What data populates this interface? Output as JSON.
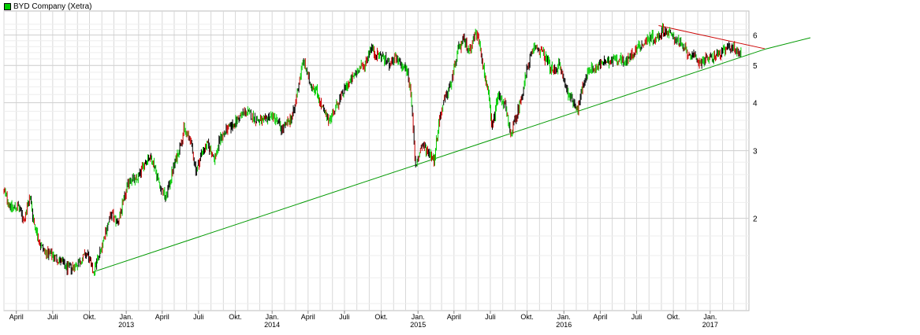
{
  "chart_data": {
    "type": "candlestick",
    "title": "",
    "xlabel": "",
    "ylabel": "",
    "y_scale": "log",
    "ylim": [
      1.15,
      6.8
    ],
    "xlim": [
      "2012-03-01",
      "2017-04-08"
    ],
    "y_ticks": [
      2,
      3,
      4,
      5,
      6
    ],
    "x_ticks": [
      {
        "date": "2012-04-01",
        "label": "April",
        "year": ""
      },
      {
        "date": "2012-07-01",
        "label": "Juli",
        "year": ""
      },
      {
        "date": "2012-10-01",
        "label": "Okt.",
        "year": ""
      },
      {
        "date": "2013-01-01",
        "label": "Jan.",
        "year": "2013"
      },
      {
        "date": "2013-04-01",
        "label": "April",
        "year": ""
      },
      {
        "date": "2013-07-01",
        "label": "Juli",
        "year": ""
      },
      {
        "date": "2013-10-01",
        "label": "Okt.",
        "year": ""
      },
      {
        "date": "2014-01-01",
        "label": "Jan.",
        "year": "2014"
      },
      {
        "date": "2014-04-01",
        "label": "April",
        "year": ""
      },
      {
        "date": "2014-07-01",
        "label": "Juli",
        "year": ""
      },
      {
        "date": "2014-10-01",
        "label": "Okt.",
        "year": ""
      },
      {
        "date": "2015-01-01",
        "label": "Jan.",
        "year": "2015"
      },
      {
        "date": "2015-04-01",
        "label": "April",
        "year": ""
      },
      {
        "date": "2015-07-01",
        "label": "Juli",
        "year": ""
      },
      {
        "date": "2015-10-01",
        "label": "Okt.",
        "year": ""
      },
      {
        "date": "2016-01-01",
        "label": "Jan.",
        "year": "2016"
      },
      {
        "date": "2016-04-01",
        "label": "April",
        "year": ""
      },
      {
        "date": "2016-07-01",
        "label": "Juli",
        "year": ""
      },
      {
        "date": "2016-10-01",
        "label": "Okt.",
        "year": ""
      },
      {
        "date": "2017-01-01",
        "label": "Jan.",
        "year": "2017"
      }
    ],
    "grid": true,
    "legend": {
      "position": "top-left",
      "label": "BYD Company (Xetra)",
      "color": "#00cc00"
    },
    "colors": {
      "up": "#00cc00",
      "down": "#cc0000",
      "neutral": "#000000",
      "support_line": "#009900",
      "resistance_line": "#cc0000",
      "grid": "#d8d8d8"
    },
    "series": [
      {
        "name": "BYD Company (Xetra)",
        "points": [
          [
            "2012-03-01",
            2.35
          ],
          [
            "2012-03-20",
            2.12
          ],
          [
            "2012-04-05",
            2.15
          ],
          [
            "2012-04-20",
            1.98
          ],
          [
            "2012-05-05",
            2.28
          ],
          [
            "2012-05-15",
            1.95
          ],
          [
            "2012-06-01",
            1.7
          ],
          [
            "2012-06-15",
            1.62
          ],
          [
            "2012-07-01",
            1.6
          ],
          [
            "2012-07-20",
            1.55
          ],
          [
            "2012-08-05",
            1.48
          ],
          [
            "2012-08-25",
            1.5
          ],
          [
            "2012-09-10",
            1.56
          ],
          [
            "2012-09-25",
            1.62
          ],
          [
            "2012-10-10",
            1.45
          ],
          [
            "2012-10-25",
            1.6
          ],
          [
            "2012-11-10",
            1.85
          ],
          [
            "2012-11-25",
            2.05
          ],
          [
            "2012-12-10",
            1.95
          ],
          [
            "2012-12-25",
            2.2
          ],
          [
            "2013-01-10",
            2.55
          ],
          [
            "2013-01-25",
            2.5
          ],
          [
            "2013-02-10",
            2.7
          ],
          [
            "2013-02-25",
            2.9
          ],
          [
            "2013-03-10",
            2.8
          ],
          [
            "2013-03-25",
            2.45
          ],
          [
            "2013-04-10",
            2.25
          ],
          [
            "2013-04-25",
            2.62
          ],
          [
            "2013-05-10",
            2.95
          ],
          [
            "2013-05-25",
            3.4
          ],
          [
            "2013-06-10",
            3.2
          ],
          [
            "2013-06-25",
            2.65
          ],
          [
            "2013-07-10",
            3.0
          ],
          [
            "2013-07-25",
            3.1
          ],
          [
            "2013-08-10",
            2.85
          ],
          [
            "2013-08-25",
            3.25
          ],
          [
            "2013-09-10",
            3.4
          ],
          [
            "2013-09-25",
            3.5
          ],
          [
            "2013-10-10",
            3.65
          ],
          [
            "2013-10-25",
            3.8
          ],
          [
            "2013-11-10",
            3.7
          ],
          [
            "2013-11-25",
            3.6
          ],
          [
            "2013-12-10",
            3.55
          ],
          [
            "2013-12-25",
            3.7
          ],
          [
            "2014-01-10",
            3.65
          ],
          [
            "2014-01-25",
            3.4
          ],
          [
            "2014-02-10",
            3.55
          ],
          [
            "2014-02-25",
            3.8
          ],
          [
            "2014-03-10",
            4.6
          ],
          [
            "2014-03-20",
            5.15
          ],
          [
            "2014-04-05",
            4.5
          ],
          [
            "2014-04-20",
            4.35
          ],
          [
            "2014-05-05",
            3.9
          ],
          [
            "2014-05-20",
            3.6
          ],
          [
            "2014-06-05",
            3.8
          ],
          [
            "2014-06-20",
            4.1
          ],
          [
            "2014-07-05",
            4.4
          ],
          [
            "2014-07-20",
            4.6
          ],
          [
            "2014-08-05",
            4.9
          ],
          [
            "2014-08-20",
            5.0
          ],
          [
            "2014-09-05",
            5.6
          ],
          [
            "2014-09-15",
            5.35
          ],
          [
            "2014-10-01",
            5.3
          ],
          [
            "2014-10-20",
            5.05
          ],
          [
            "2014-11-05",
            5.2
          ],
          [
            "2014-11-20",
            5.0
          ],
          [
            "2014-12-05",
            4.85
          ],
          [
            "2014-12-15",
            4.2
          ],
          [
            "2014-12-25",
            2.7
          ],
          [
            "2015-01-10",
            3.1
          ],
          [
            "2015-01-25",
            3.0
          ],
          [
            "2015-02-10",
            2.85
          ],
          [
            "2015-02-25",
            3.7
          ],
          [
            "2015-03-10",
            4.1
          ],
          [
            "2015-03-25",
            4.5
          ],
          [
            "2015-04-10",
            5.45
          ],
          [
            "2015-04-25",
            5.8
          ],
          [
            "2015-05-10",
            5.5
          ],
          [
            "2015-05-25",
            6.1
          ],
          [
            "2015-06-05",
            5.7
          ],
          [
            "2015-06-15",
            4.8
          ],
          [
            "2015-06-25",
            4.3
          ],
          [
            "2015-07-05",
            3.4
          ],
          [
            "2015-07-20",
            4.2
          ],
          [
            "2015-08-05",
            4.0
          ],
          [
            "2015-08-20",
            3.3
          ],
          [
            "2015-09-05",
            3.7
          ],
          [
            "2015-09-20",
            4.3
          ],
          [
            "2015-10-05",
            5.1
          ],
          [
            "2015-10-20",
            5.6
          ],
          [
            "2015-11-05",
            5.45
          ],
          [
            "2015-11-20",
            5.15
          ],
          [
            "2015-12-05",
            4.8
          ],
          [
            "2015-12-20",
            5.05
          ],
          [
            "2016-01-05",
            4.4
          ],
          [
            "2016-01-20",
            4.1
          ],
          [
            "2016-02-05",
            3.85
          ],
          [
            "2016-02-20",
            4.5
          ],
          [
            "2016-03-05",
            4.95
          ],
          [
            "2016-03-20",
            4.9
          ],
          [
            "2016-04-05",
            5.1
          ],
          [
            "2016-04-20",
            5.05
          ],
          [
            "2016-05-05",
            5.25
          ],
          [
            "2016-05-20",
            5.2
          ],
          [
            "2016-06-05",
            5.1
          ],
          [
            "2016-06-20",
            5.35
          ],
          [
            "2016-07-05",
            5.6
          ],
          [
            "2016-07-20",
            5.7
          ],
          [
            "2016-08-05",
            5.95
          ],
          [
            "2016-08-20",
            5.85
          ],
          [
            "2016-09-05",
            6.2
          ],
          [
            "2016-09-20",
            6.05
          ],
          [
            "2016-10-05",
            5.9
          ],
          [
            "2016-10-20",
            5.65
          ],
          [
            "2016-11-05",
            5.4
          ],
          [
            "2016-11-20",
            5.25
          ],
          [
            "2016-12-05",
            5.1
          ],
          [
            "2016-12-20",
            5.2
          ],
          [
            "2017-01-05",
            5.25
          ],
          [
            "2017-01-20",
            5.35
          ],
          [
            "2017-02-05",
            5.45
          ],
          [
            "2017-02-20",
            5.6
          ],
          [
            "2017-03-05",
            5.5
          ],
          [
            "2017-03-20",
            5.35
          ]
        ]
      }
    ],
    "trendlines": [
      {
        "name": "support",
        "color": "#009900",
        "from": [
          "2012-10-10",
          1.45
        ],
        "to": [
          "2017-04-08",
          5.28
        ]
      },
      {
        "name": "resistance",
        "color": "#cc0000",
        "from": [
          "2016-08-25",
          6.35
        ],
        "to": [
          "2017-04-08",
          5.45
        ]
      }
    ]
  }
}
